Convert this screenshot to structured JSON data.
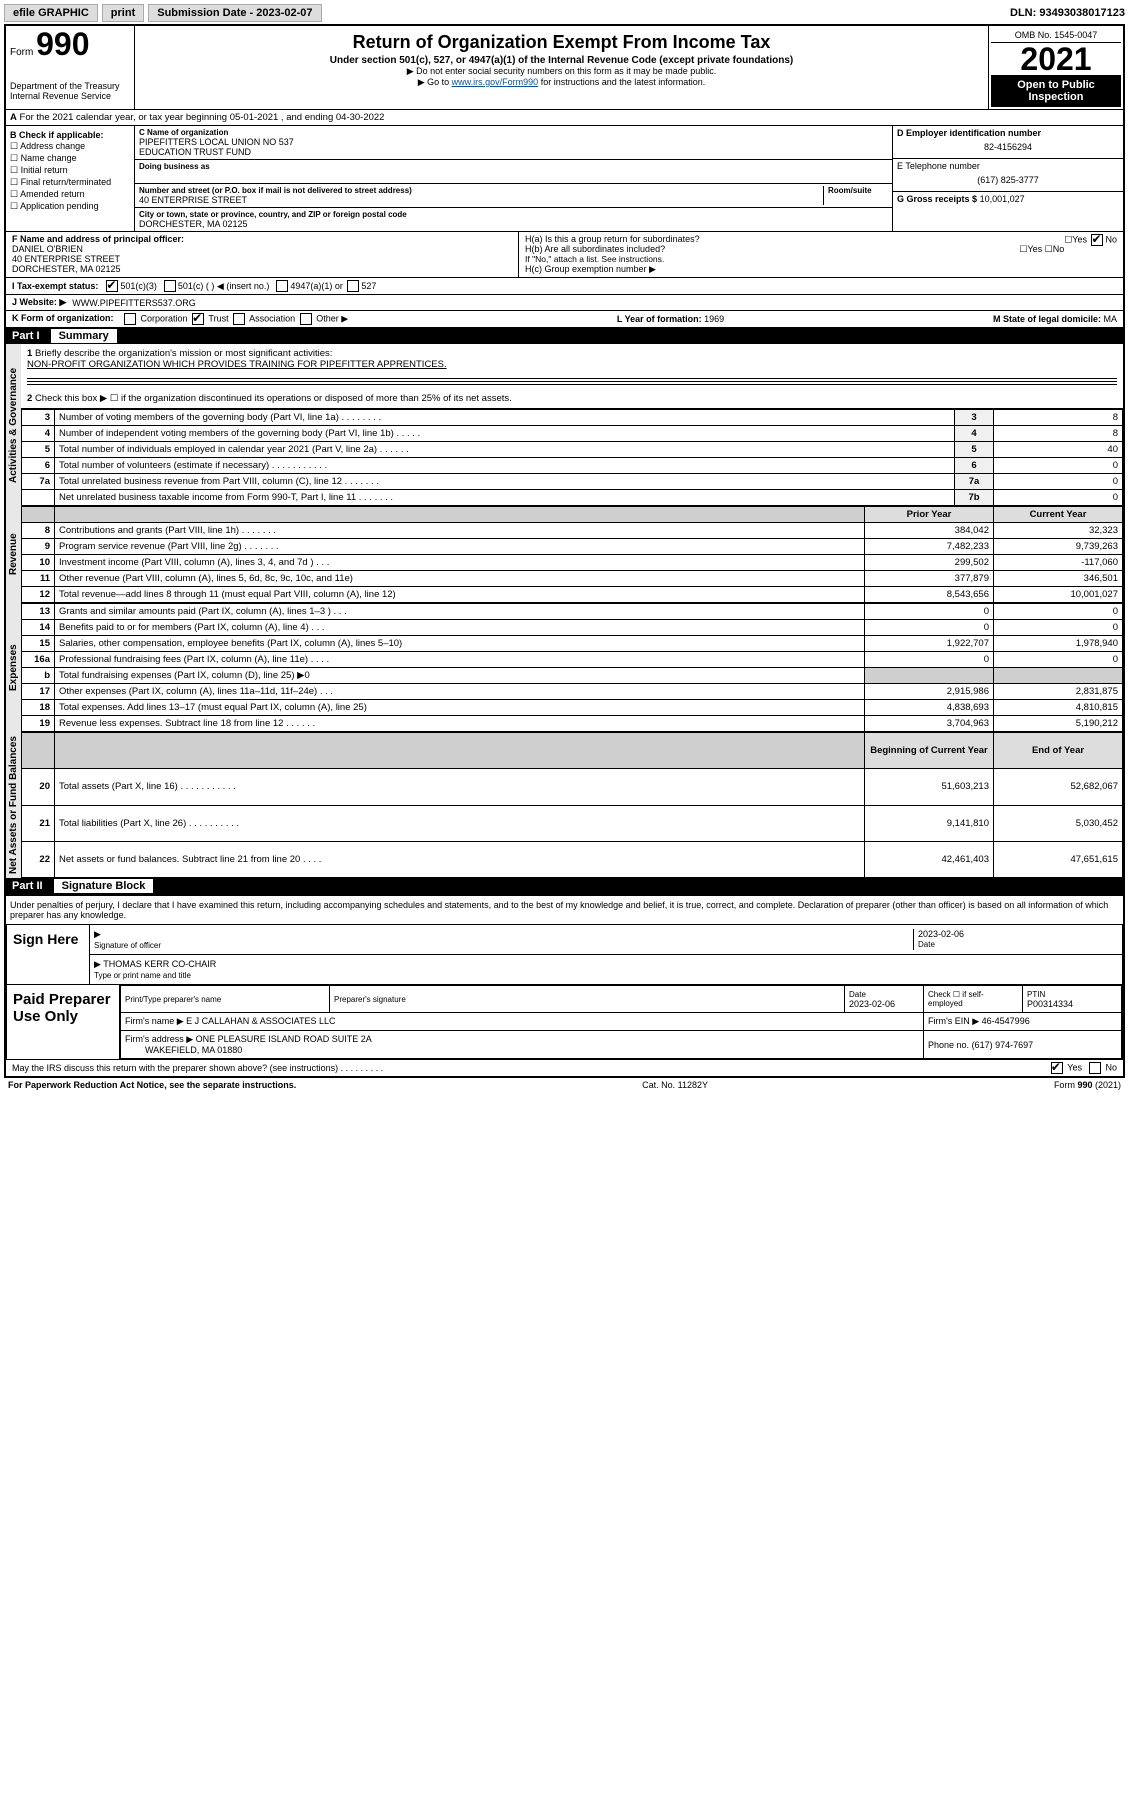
{
  "topbar": {
    "efile": "efile GRAPHIC",
    "print": "print",
    "sub_label": "Submission Date - 2023-02-07",
    "dln": "DLN: 93493038017123"
  },
  "form": {
    "prefix": "Form",
    "number": "990",
    "dept": "Department of the Treasury",
    "irs": "Internal Revenue Service"
  },
  "title": {
    "main": "Return of Organization Exempt From Income Tax",
    "sub": "Under section 501(c), 527, or 4947(a)(1) of the Internal Revenue Code (except private foundations)",
    "note1": "▶ Do not enter social security numbers on this form as it may be made public.",
    "note2_pre": "▶ Go to ",
    "note2_link": "www.irs.gov/Form990",
    "note2_post": " for instructions and the latest information."
  },
  "yearbox": {
    "omb": "OMB No. 1545-0047",
    "year": "2021",
    "open": "Open to Public Inspection"
  },
  "lineA": "For the 2021 calendar year, or tax year beginning 05-01-2021   , and ending 04-30-2022",
  "B": {
    "label": "B Check if applicable:",
    "opts": [
      "Address change",
      "Name change",
      "Initial return",
      "Final return/terminated",
      "Amended return",
      "Application pending"
    ]
  },
  "C": {
    "lbl": "C Name of organization",
    "name1": "PIPEFITTERS LOCAL UNION NO 537",
    "name2": "EDUCATION TRUST FUND",
    "dba_lbl": "Doing business as",
    "addr_lbl": "Number and street (or P.O. box if mail is not delivered to street address)",
    "room_lbl": "Room/suite",
    "addr": "40 ENTERPRISE STREET",
    "city_lbl": "City or town, state or province, country, and ZIP or foreign postal code",
    "city": "DORCHESTER, MA  02125"
  },
  "D": {
    "lbl": "D Employer identification number",
    "val": "82-4156294",
    "tel_lbl": "E Telephone number",
    "tel": "(617) 825-3777",
    "gross_lbl": "G Gross receipts $",
    "gross": "10,001,027"
  },
  "F": {
    "lbl": "F  Name and address of principal officer:",
    "name": "DANIEL O'BRIEN",
    "addr": "40 ENTERPRISE STREET",
    "city": "DORCHESTER, MA  02125"
  },
  "H": {
    "a": "H(a)  Is this a group return for subordinates?",
    "b": "H(b)  Are all subordinates included?",
    "note": "If \"No,\" attach a list. See instructions.",
    "c": "H(c)  Group exemption number ▶"
  },
  "I": {
    "lbl": "I   Tax-exempt status:",
    "o1": "501(c)(3)",
    "o2": "501(c) (   ) ◀ (insert no.)",
    "o3": "4947(a)(1) or",
    "o4": "527"
  },
  "J": {
    "lbl": "J   Website: ▶",
    "val": "WWW.PIPEFITTERS537.ORG"
  },
  "K": {
    "lbl": "K Form of organization:",
    "o1": "Corporation",
    "o2": "Trust",
    "o3": "Association",
    "o4": "Other ▶"
  },
  "L": {
    "lbl": "L Year of formation:",
    "val": "1969"
  },
  "M": {
    "lbl": "M State of legal domicile:",
    "val": "MA"
  },
  "partI": {
    "hdr": "Part I",
    "sub": "Summary",
    "q1": "Briefly describe the organization's mission or most significant activities:",
    "q1v": "NON-PROFIT ORGANIZATION WHICH PROVIDES TRAINING FOR PIPEFITTER APPRENTICES.",
    "q2": "Check this box ▶ ☐  if the organization discontinued its operations or disposed of more than 25% of its net assets.",
    "rows_gov": [
      {
        "n": "3",
        "d": "Number of voting members of the governing body (Part VI, line 1a)  .    .    .    .    .    .    .    .",
        "box": "3",
        "v": "8"
      },
      {
        "n": "4",
        "d": "Number of independent voting members of the governing body (Part VI, line 1b)   .    .    .    .    .",
        "box": "4",
        "v": "8"
      },
      {
        "n": "5",
        "d": "Total number of individuals employed in calendar year 2021 (Part V, line 2a)   .    .    .    .    .    .",
        "box": "5",
        "v": "40"
      },
      {
        "n": "6",
        "d": "Total number of volunteers (estimate if necessary)    .    .    .    .    .    .    .    .    .    .    .",
        "box": "6",
        "v": "0"
      },
      {
        "n": "7a",
        "d": "Total unrelated business revenue from Part VIII, column (C), line 12   .    .    .    .    .    .    .",
        "box": "7a",
        "v": "0"
      },
      {
        "n": "",
        "d": "Net unrelated business taxable income from Form 990-T, Part I, line 11   .    .    .    .    .    .    .",
        "box": "7b",
        "v": "0"
      }
    ],
    "hdr_prior": "Prior Year",
    "hdr_curr": "Current Year",
    "rows_rev": [
      {
        "n": "8",
        "d": "Contributions and grants (Part VIII, line 1h)   .    .    .    .    .    .    .",
        "p": "384,042",
        "c": "32,323"
      },
      {
        "n": "9",
        "d": "Program service revenue (Part VIII, line 2g)   .    .    .    .    .    .    .",
        "p": "7,482,233",
        "c": "9,739,263"
      },
      {
        "n": "10",
        "d": "Investment income (Part VIII, column (A), lines 3, 4, and 7d )   .    .    .",
        "p": "299,502",
        "c": "-117,060"
      },
      {
        "n": "11",
        "d": "Other revenue (Part VIII, column (A), lines 5, 6d, 8c, 9c, 10c, and 11e)",
        "p": "377,879",
        "c": "346,501"
      },
      {
        "n": "12",
        "d": "Total revenue—add lines 8 through 11 (must equal Part VIII, column (A), line 12)",
        "p": "8,543,656",
        "c": "10,001,027"
      }
    ],
    "rows_exp": [
      {
        "n": "13",
        "d": "Grants and similar amounts paid (Part IX, column (A), lines 1–3 )   .    .    .",
        "p": "0",
        "c": "0"
      },
      {
        "n": "14",
        "d": "Benefits paid to or for members (Part IX, column (A), line 4)   .    .    .",
        "p": "0",
        "c": "0"
      },
      {
        "n": "15",
        "d": "Salaries, other compensation, employee benefits (Part IX, column (A), lines 5–10)",
        "p": "1,922,707",
        "c": "1,978,940"
      },
      {
        "n": "16a",
        "d": "Professional fundraising fees (Part IX, column (A), line 11e)   .    .    .    .",
        "p": "0",
        "c": "0"
      },
      {
        "n": "b",
        "d": "Total fundraising expenses (Part IX, column (D), line 25) ▶0",
        "p": "",
        "c": "",
        "shade": true
      },
      {
        "n": "17",
        "d": "Other expenses (Part IX, column (A), lines 11a–11d, 11f–24e)   .    .    .",
        "p": "2,915,986",
        "c": "2,831,875"
      },
      {
        "n": "18",
        "d": "Total expenses. Add lines 13–17 (must equal Part IX, column (A), line 25)",
        "p": "4,838,693",
        "c": "4,810,815"
      },
      {
        "n": "19",
        "d": "Revenue less expenses. Subtract line 18 from line 12   .    .    .    .    .    .",
        "p": "3,704,963",
        "c": "5,190,212"
      }
    ],
    "hdr_beg": "Beginning of Current Year",
    "hdr_end": "End of Year",
    "rows_net": [
      {
        "n": "20",
        "d": "Total assets (Part X, line 16)   .    .    .    .    .    .    .    .    .    .    .",
        "p": "51,603,213",
        "c": "52,682,067"
      },
      {
        "n": "21",
        "d": "Total liabilities (Part X, line 26)   .    .    .    .    .    .    .    .    .    .",
        "p": "9,141,810",
        "c": "5,030,452"
      },
      {
        "n": "22",
        "d": "Net assets or fund balances. Subtract line 21 from line 20   .    .    .    .",
        "p": "42,461,403",
        "c": "47,651,615"
      }
    ],
    "vlab_gov": "Activities & Governance",
    "vlab_rev": "Revenue",
    "vlab_exp": "Expenses",
    "vlab_net": "Net Assets or Fund Balances"
  },
  "partII": {
    "hdr": "Part II",
    "sub": "Signature Block",
    "penalty": "Under penalties of perjury, I declare that I have examined this return, including accompanying schedules and statements, and to the best of my knowledge and belief, it is true, correct, and complete. Declaration of preparer (other than officer) is based on all information of which preparer has any knowledge.",
    "sign_here": "Sign Here",
    "sig_off": "Signature of officer",
    "date": "Date",
    "date_v": "2023-02-06",
    "name": "THOMAS KERR  CO-CHAIR",
    "name_lbl": "Type or print name and title",
    "paid": "Paid Preparer Use Only",
    "pt_name_lbl": "Print/Type preparer's name",
    "pt_sig_lbl": "Preparer's signature",
    "pt_date": "2023-02-06",
    "pt_check": "Check ☐ if self-employed",
    "ptin_lbl": "PTIN",
    "ptin": "P00314334",
    "firm_name_lbl": "Firm's name    ▶",
    "firm_name": "E J CALLAHAN & ASSOCIATES LLC",
    "firm_ein_lbl": "Firm's EIN ▶",
    "firm_ein": "46-4547996",
    "firm_addr_lbl": "Firm's address ▶",
    "firm_addr1": "ONE PLEASURE ISLAND ROAD SUITE 2A",
    "firm_addr2": "WAKEFIELD, MA  01880",
    "phone_lbl": "Phone no.",
    "phone": "(617) 974-7697",
    "discuss": "May the IRS discuss this return with the preparer shown above? (see instructions)    .    .    .    .    .    .    .    .    .",
    "yes": "Yes",
    "no": "No"
  },
  "footer": {
    "l": "For Paperwork Reduction Act Notice, see the separate instructions.",
    "c": "Cat. No. 11282Y",
    "r": "Form 990 (2021)"
  }
}
